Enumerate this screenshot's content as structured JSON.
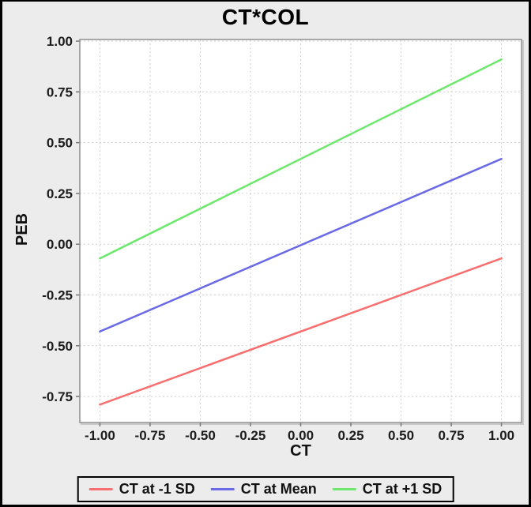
{
  "figure": {
    "background": "#ececec",
    "outer_border_color": "#000000",
    "legend_border_color": "#000000",
    "legend_background": "#ececec"
  },
  "chart_data": {
    "type": "line",
    "title": "CT*COL",
    "xlabel": "CT",
    "ylabel": "PEB",
    "xlim": [
      -1.1,
      1.1
    ],
    "ylim": [
      -0.878,
      1.008
    ],
    "x_tick_labels": [
      "-1.00",
      "-0.75",
      "-0.50",
      "-0.25",
      "0.00",
      "0.25",
      "0.50",
      "0.75",
      "1.00"
    ],
    "y_tick_labels": [
      "-0.75",
      "-0.50",
      "-0.25",
      "0.00",
      "0.25",
      "0.50",
      "0.75",
      "1.00"
    ],
    "grid": true,
    "grid_color": "#cfcfcf",
    "plot_background": "#ffffff",
    "plot_border_color": "#8f8f8f",
    "plot_shadow_color": "#c9c9c9",
    "tick_color": "#777777",
    "tick_label_color": "#1c1c1c",
    "legend_position": "bottom",
    "series": [
      {
        "name": "CT at -1 SD",
        "color": "#f96e6e",
        "x": [
          -1.0,
          1.0
        ],
        "y": [
          -0.79,
          -0.07
        ]
      },
      {
        "name": "CT at Mean",
        "color": "#6a6ae6",
        "x": [
          -1.0,
          1.0
        ],
        "y": [
          -0.43,
          0.42
        ]
      },
      {
        "name": "CT at +1 SD",
        "color": "#6ce86c",
        "x": [
          -1.0,
          1.0
        ],
        "y": [
          -0.07,
          0.91
        ]
      }
    ]
  }
}
